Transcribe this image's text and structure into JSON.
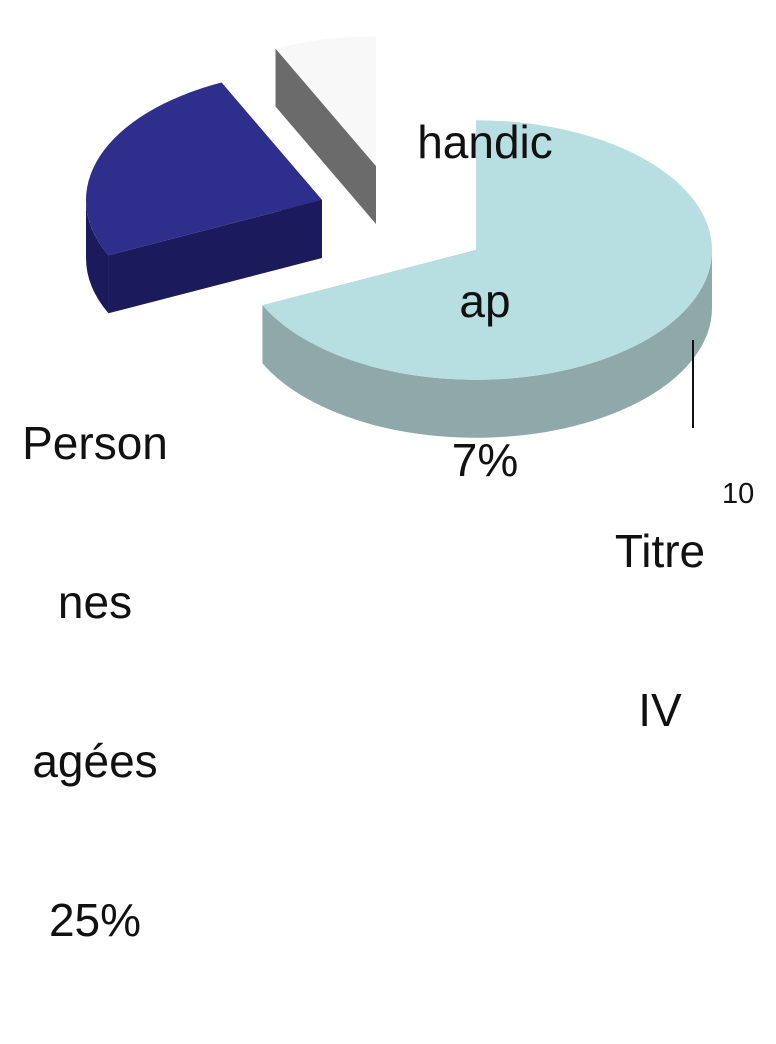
{
  "chart_data": {
    "type": "pie",
    "style": "3d-exploded",
    "slices": [
      {
        "label_lines": [
          "Titre",
          "IV"
        ],
        "value": 68,
        "percent_text": "",
        "color": "#b7dfe1",
        "side_color": "#8fa8aa"
      },
      {
        "label_lines": [
          "Person",
          "nes",
          "agées"
        ],
        "value": 25,
        "percent_text": "25%",
        "color": "#2e2e8c",
        "side_color": "#1a1a5c"
      },
      {
        "label_lines": [
          "handic",
          "ap"
        ],
        "value": 7,
        "percent_text": "7%",
        "color": "#f8f8f8",
        "side_color": "#6b6b6b"
      }
    ]
  },
  "page": {
    "number": "10"
  }
}
